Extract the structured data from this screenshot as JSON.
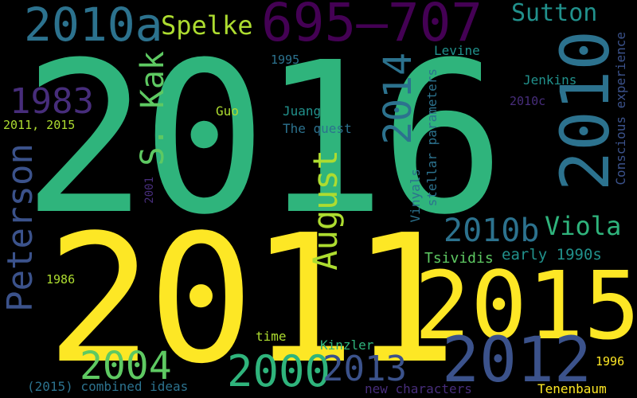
{
  "palette": {
    "background": "#000000",
    "yellow": "#fde725",
    "green": "#2fb47c",
    "lime": "#addc30",
    "light_green": "#5ec962",
    "teal": "#21918c",
    "dark_teal": "#2c728e",
    "blue": "#3b528b",
    "indigo": "#472d7b",
    "purple": "#440154"
  },
  "words": {
    "w2016": "2016",
    "w2011": "2011",
    "w2015": "2015",
    "w2012": "2012",
    "w2010": "2010",
    "w695": "695–707",
    "w2010a": "2010a",
    "w2000": "2000",
    "w2013": "2013",
    "w2004": "2004",
    "w2014": "2014",
    "w2010b": "2010b",
    "w1983": "1983",
    "wPeterson": "Peterson",
    "wAugust": "August",
    "wSKak": "S. Kak",
    "wSutton": "Sutton",
    "wSpelke": "Spelke",
    "wViola": "Viola",
    "wEarly1990s": "early 1990s",
    "wTsividis": "Tsividis",
    "wLevine": "Levine",
    "wJenkins": "Jenkins",
    "w1995": "1995",
    "wGuo": "Guo",
    "wJuang": "Juang",
    "wTheQuest": "The quest",
    "w20112015": "2011, 2015",
    "w2010c": "2010c",
    "wConscious": "Conscious experience",
    "wStellar": "stellar parameters",
    "wVinyals": "Vinyals",
    "w2001": "2001",
    "w1986": "1986",
    "wTime": "time",
    "wKinzler": "Kinzler",
    "w1996": "1996",
    "wCombined": "(2015) combined ideas",
    "wNewChars": "new characters",
    "wTenenbaum": "Tenenbaum"
  }
}
